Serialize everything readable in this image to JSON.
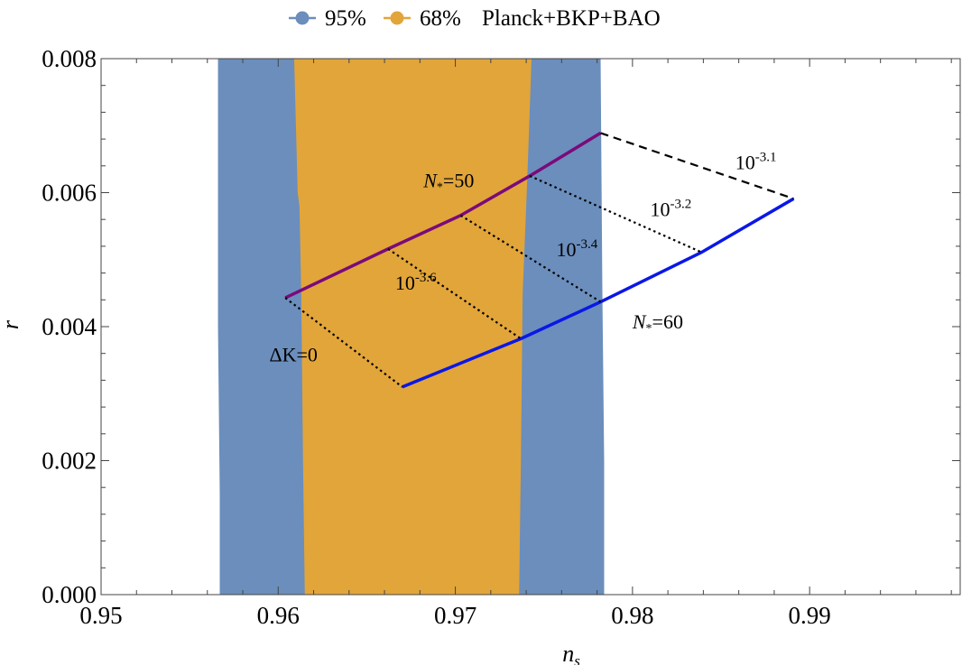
{
  "chart_data": {
    "type": "area",
    "xlabel": "n",
    "xlabel_sub": "s",
    "ylabel": "r",
    "xlim": [
      0.95,
      0.9985
    ],
    "ylim": [
      0.0,
      0.008
    ],
    "x_ticks": [
      0.95,
      0.96,
      0.97,
      0.98,
      0.99
    ],
    "x_tick_labels": [
      "0.95",
      "0.96",
      "0.97",
      "0.98",
      "0.99"
    ],
    "y_ticks": [
      0.0,
      0.002,
      0.004,
      0.006,
      0.008
    ],
    "y_tick_labels": [
      "0.000",
      "0.002",
      "0.004",
      "0.006",
      "0.008"
    ],
    "grid": false,
    "legend": {
      "position": "top-center",
      "entries": [
        {
          "label": "95%",
          "color": "#6b8ebc"
        },
        {
          "label": "68%",
          "color": "#e2a53a"
        }
      ],
      "suffix": "Planck+BKP+BAO"
    },
    "regions": [
      {
        "name": "95%",
        "color": "#6b8ebc",
        "left": [
          [
            0.9567,
            0.0
          ],
          [
            0.9567,
            0.0015
          ],
          [
            0.9566,
            0.004
          ],
          [
            0.9566,
            0.008
          ]
        ],
        "right": [
          [
            0.9784,
            0.0
          ],
          [
            0.9784,
            0.002
          ],
          [
            0.9783,
            0.0045
          ],
          [
            0.9782,
            0.008
          ]
        ]
      },
      {
        "name": "68%",
        "color": "#e2a53a",
        "left": [
          [
            0.9615,
            0.0
          ],
          [
            0.9614,
            0.002
          ],
          [
            0.9613,
            0.0045
          ],
          [
            0.9612,
            0.0058
          ],
          [
            0.9611,
            0.006
          ],
          [
            0.9609,
            0.008
          ]
        ],
        "right": [
          [
            0.9736,
            0.0
          ],
          [
            0.9737,
            0.002
          ],
          [
            0.9738,
            0.0045
          ],
          [
            0.974,
            0.0058
          ],
          [
            0.9741,
            0.0065
          ],
          [
            0.9743,
            0.008
          ]
        ]
      }
    ],
    "series": [
      {
        "name": "N*=50",
        "color": "#7b0a7b",
        "style": "solid",
        "points": [
          [
            0.9604,
            0.00443
          ],
          [
            0.9662,
            0.00516
          ],
          [
            0.9703,
            0.00566
          ],
          [
            0.9742,
            0.00625
          ],
          [
            0.9782,
            0.00689
          ]
        ]
      },
      {
        "name": "N*=60",
        "color": "#0a18e6",
        "style": "solid",
        "points": [
          [
            0.967,
            0.0031
          ],
          [
            0.9737,
            0.00382
          ],
          [
            0.9782,
            0.00437
          ],
          [
            0.9839,
            0.00511
          ],
          [
            0.9891,
            0.00591
          ]
        ]
      },
      {
        "name": "ΔK=0",
        "color": "#000000",
        "style": "dotted",
        "points": [
          [
            0.9604,
            0.00443
          ],
          [
            0.967,
            0.0031
          ]
        ]
      },
      {
        "name": "10^-3.6",
        "color": "#000000",
        "style": "dotted",
        "points": [
          [
            0.9662,
            0.00516
          ],
          [
            0.9737,
            0.00382
          ]
        ]
      },
      {
        "name": "10^-3.4",
        "color": "#000000",
        "style": "dotted",
        "points": [
          [
            0.9703,
            0.00566
          ],
          [
            0.9782,
            0.00437
          ]
        ]
      },
      {
        "name": "10^-3.2",
        "color": "#000000",
        "style": "dotted",
        "points": [
          [
            0.9742,
            0.00625
          ],
          [
            0.9839,
            0.00511
          ]
        ]
      },
      {
        "name": "10^-3.1",
        "color": "#000000",
        "style": "dashed",
        "points": [
          [
            0.9782,
            0.00689
          ],
          [
            0.9891,
            0.00591
          ]
        ]
      }
    ],
    "annotations": [
      {
        "name": "n50-label",
        "text": "N",
        "sub": "*",
        "suffix": "=50",
        "x": 0.9682,
        "y": 0.00608
      },
      {
        "name": "n60-label",
        "text": "N",
        "sub": "*",
        "suffix": "=60",
        "x": 0.98,
        "y": 0.00397
      },
      {
        "name": "dk0-label",
        "text": "ΔK=0",
        "x": 0.9595,
        "y": 0.00348
      },
      {
        "name": "lev36-label",
        "base": "10",
        "exp": "-3.6",
        "x": 0.9666,
        "y": 0.00455
      },
      {
        "name": "lev34-label",
        "base": "10",
        "exp": "-3.4",
        "x": 0.9757,
        "y": 0.00505
      },
      {
        "name": "lev32-label",
        "base": "10",
        "exp": "-3.2",
        "x": 0.981,
        "y": 0.00565
      },
      {
        "name": "lev31-label",
        "base": "10",
        "exp": "-3.1",
        "x": 0.9858,
        "y": 0.00635
      }
    ]
  }
}
